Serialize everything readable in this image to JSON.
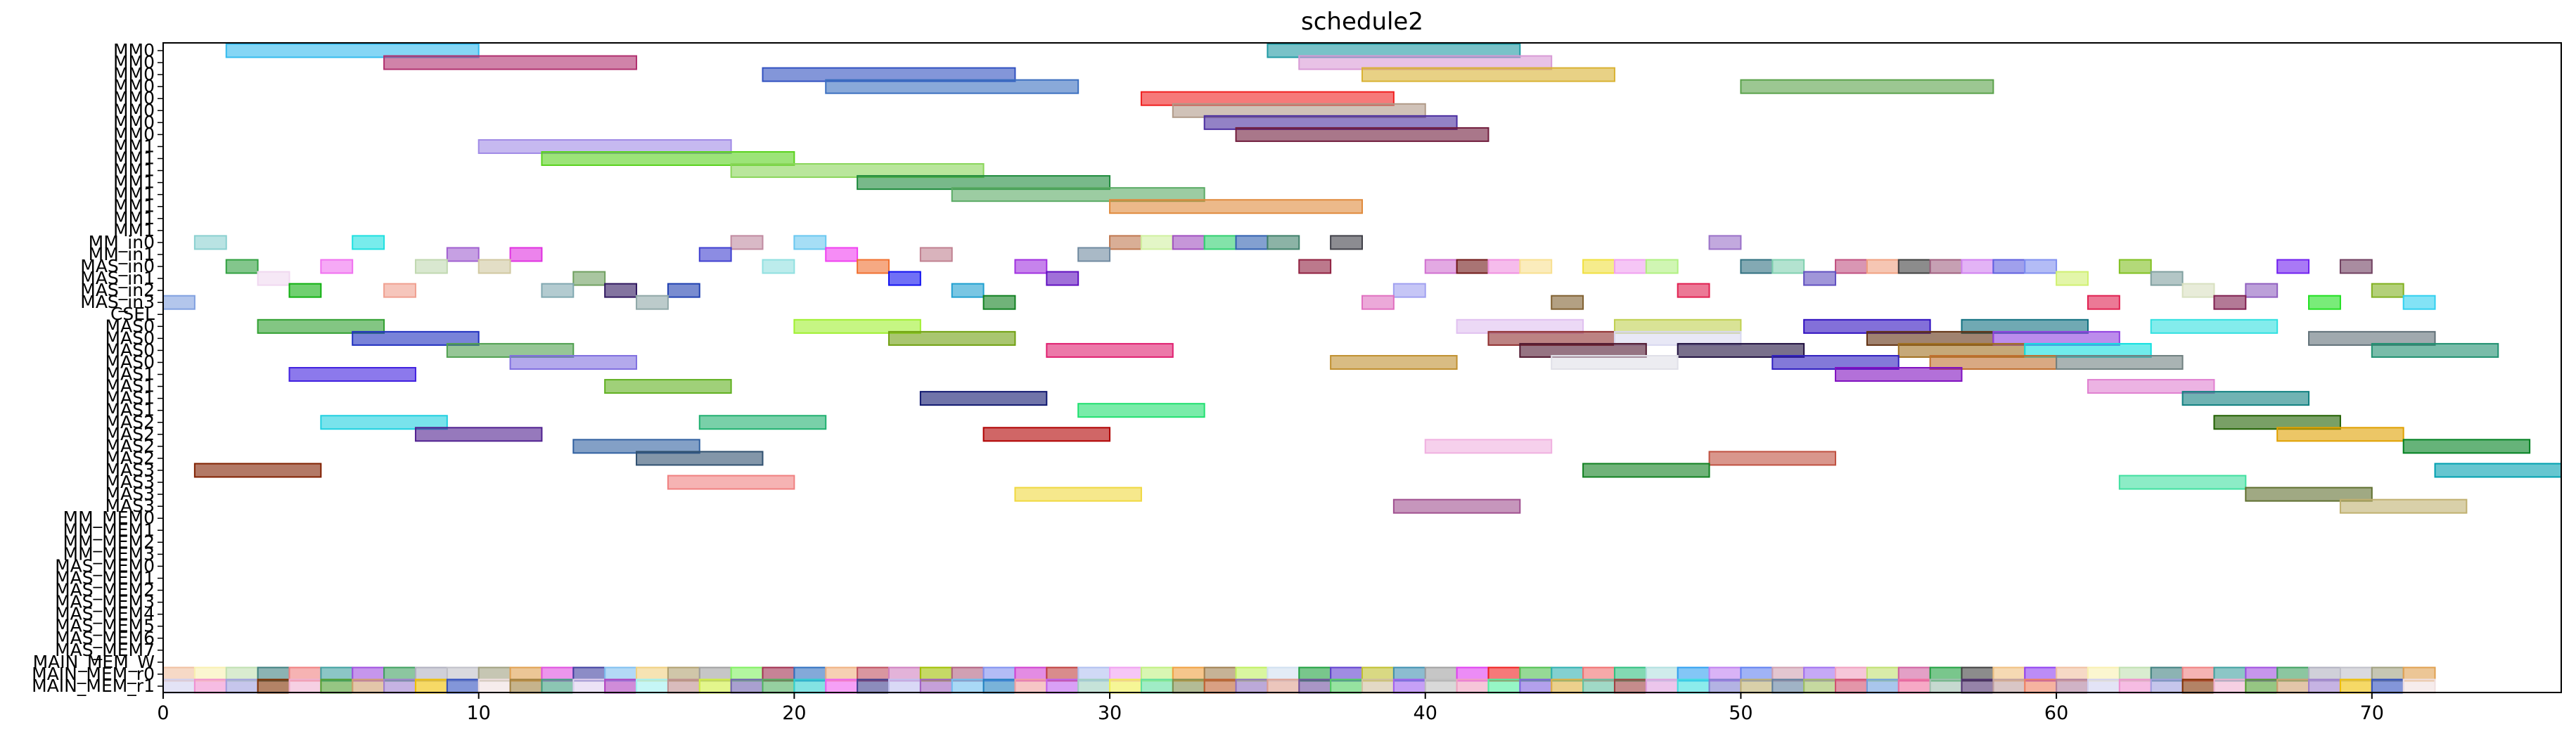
{
  "chart_data": {
    "type": "gantt",
    "title": "schedule2",
    "xlim": [
      0,
      76
    ],
    "x_ticks": [
      0,
      10,
      20,
      30,
      40,
      50,
      60,
      70
    ],
    "rows": [
      "MM0",
      "MM0",
      "MM0",
      "MM0",
      "MM0",
      "MM0",
      "MM0",
      "MM0",
      "MM1",
      "MM1",
      "MM1",
      "MM1",
      "MM1",
      "MM1",
      "MM1",
      "MM1",
      "MM_in0",
      "MM_in1",
      "MAS_in0",
      "MAS_in1",
      "MAS_in2",
      "MAS_in3",
      "CSEL",
      "MAS0",
      "MAS0",
      "MAS0",
      "MAS0",
      "MAS1",
      "MAS1",
      "MAS1",
      "MAS1",
      "MAS2",
      "MAS2",
      "MAS2",
      "MAS2",
      "MAS3",
      "MAS3",
      "MAS3",
      "MAS3",
      "MM_MEM0",
      "MM_MEM1",
      "MM_MEM2",
      "MM_MEM3",
      "MAS_MEM0",
      "MAS_MEM1",
      "MAS_MEM2",
      "MAS_MEM3",
      "MAS_MEM4",
      "MAS_MEM5",
      "MAS_MEM6",
      "MAS_MEM7",
      "MAIN_MEM_W",
      "MAIN_MEM_r0",
      "MAIN_MEM_r1"
    ],
    "tasks": [
      {
        "row": 0,
        "start": 2,
        "end": 10,
        "color": "#33bbee"
      },
      {
        "row": 0,
        "start": 35,
        "end": 43,
        "color": "#1f9aa3"
      },
      {
        "row": 1,
        "start": 7,
        "end": 15,
        "color": "#b0306f"
      },
      {
        "row": 1,
        "start": 36,
        "end": 44,
        "color": "#d89ad6"
      },
      {
        "row": 2,
        "start": 19,
        "end": 27,
        "color": "#3050c0"
      },
      {
        "row": 2,
        "start": 38,
        "end": 46,
        "color": "#d9b233"
      },
      {
        "row": 3,
        "start": 21,
        "end": 29,
        "color": "#3b6fc0"
      },
      {
        "row": 3,
        "start": 50,
        "end": 58,
        "color": "#5aa24a"
      },
      {
        "row": 4,
        "start": 31,
        "end": 39,
        "color": "#f02020"
      },
      {
        "row": 5,
        "start": 32,
        "end": 40,
        "color": "#b09a88"
      },
      {
        "row": 6,
        "start": 33,
        "end": 41,
        "color": "#4b2ea0"
      },
      {
        "row": 7,
        "start": 34,
        "end": 42,
        "color": "#701c3c"
      },
      {
        "row": 8,
        "start": 10,
        "end": 18,
        "color": "#a08ae6"
      },
      {
        "row": 9,
        "start": 12,
        "end": 20,
        "color": "#5ad21e"
      },
      {
        "row": 10,
        "start": 18,
        "end": 26,
        "color": "#8ad65a"
      },
      {
        "row": 11,
        "start": 22,
        "end": 30,
        "color": "#1e8a3c"
      },
      {
        "row": 12,
        "start": 25,
        "end": 33,
        "color": "#5aaa64"
      },
      {
        "row": 13,
        "start": 30,
        "end": 38,
        "color": "#e08a3c"
      },
      {
        "row": 16,
        "start": 1,
        "end": 2,
        "color": "#8ad0d0"
      },
      {
        "row": 16,
        "start": 6,
        "end": 7,
        "color": "#1ee0e0"
      },
      {
        "row": 16,
        "start": 18,
        "end": 19,
        "color": "#c08aa0"
      },
      {
        "row": 16,
        "start": 20,
        "end": 21,
        "color": "#6ac8f0"
      },
      {
        "row": 16,
        "start": 30,
        "end": 31,
        "color": "#c07850"
      },
      {
        "row": 16,
        "start": 31,
        "end": 32,
        "color": "#d0f0a0"
      },
      {
        "row": 16,
        "start": 32,
        "end": 33,
        "color": "#a050c0"
      },
      {
        "row": 16,
        "start": 33,
        "end": 34,
        "color": "#30d070"
      },
      {
        "row": 16,
        "start": 34,
        "end": 35,
        "color": "#3060b0"
      },
      {
        "row": 16,
        "start": 35,
        "end": 36,
        "color": "#40806a"
      },
      {
        "row": 16,
        "start": 37,
        "end": 38,
        "color": "#404048"
      },
      {
        "row": 16,
        "start": 49,
        "end": 50,
        "color": "#9a70c8"
      },
      {
        "row": 17,
        "start": 9,
        "end": 10,
        "color": "#a060d0"
      },
      {
        "row": 17,
        "start": 11,
        "end": 12,
        "color": "#e030e0"
      },
      {
        "row": 17,
        "start": 17,
        "end": 18,
        "color": "#4040d0"
      },
      {
        "row": 17,
        "start": 21,
        "end": 22,
        "color": "#f040f0"
      },
      {
        "row": 17,
        "start": 24,
        "end": 25,
        "color": "#c08090"
      },
      {
        "row": 17,
        "start": 29,
        "end": 30,
        "color": "#708aa0"
      },
      {
        "row": 18,
        "start": 2,
        "end": 3,
        "color": "#30a040"
      },
      {
        "row": 18,
        "start": 5,
        "end": 6,
        "color": "#f070f0"
      },
      {
        "row": 18,
        "start": 8,
        "end": 9,
        "color": "#c0d8b0"
      },
      {
        "row": 18,
        "start": 10,
        "end": 11,
        "color": "#d0c8a0"
      },
      {
        "row": 18,
        "start": 19,
        "end": 20,
        "color": "#90e0e0"
      },
      {
        "row": 18,
        "start": 22,
        "end": 23,
        "color": "#f07030"
      },
      {
        "row": 18,
        "start": 27,
        "end": 28,
        "color": "#a030e0"
      },
      {
        "row": 18,
        "start": 36,
        "end": 37,
        "color": "#902040"
      },
      {
        "row": 18,
        "start": 40,
        "end": 41,
        "color": "#d070d0"
      },
      {
        "row": 18,
        "start": 41,
        "end": 42,
        "color": "#701818"
      },
      {
        "row": 18,
        "start": 42,
        "end": 43,
        "color": "#f090e0"
      },
      {
        "row": 18,
        "start": 43,
        "end": 44,
        "color": "#f8e090"
      },
      {
        "row": 18,
        "start": 45,
        "end": 46,
        "color": "#f0e040"
      },
      {
        "row": 18,
        "start": 46,
        "end": 47,
        "color": "#f0a0f0"
      },
      {
        "row": 18,
        "start": 47,
        "end": 48,
        "color": "#b0f080"
      },
      {
        "row": 18,
        "start": 50,
        "end": 51,
        "color": "#307080"
      },
      {
        "row": 18,
        "start": 51,
        "end": 52,
        "color": "#80d0b0"
      },
      {
        "row": 18,
        "start": 53,
        "end": 54,
        "color": "#c05080"
      },
      {
        "row": 18,
        "start": 54,
        "end": 55,
        "color": "#f0a080"
      },
      {
        "row": 18,
        "start": 55,
        "end": 56,
        "color": "#404040"
      },
      {
        "row": 18,
        "start": 56,
        "end": 57,
        "color": "#a06080"
      },
      {
        "row": 18,
        "start": 57,
        "end": 58,
        "color": "#d080f0"
      },
      {
        "row": 18,
        "start": 58,
        "end": 59,
        "color": "#6060e0"
      },
      {
        "row": 18,
        "start": 59,
        "end": 60,
        "color": "#8090f0"
      },
      {
        "row": 18,
        "start": 62,
        "end": 63,
        "color": "#80c020"
      },
      {
        "row": 18,
        "start": 67,
        "end": 68,
        "color": "#7020f0"
      },
      {
        "row": 18,
        "start": 69,
        "end": 70,
        "color": "#704060"
      },
      {
        "row": 19,
        "start": 3,
        "end": 4,
        "color": "#f0d8f0"
      },
      {
        "row": 19,
        "start": 13,
        "end": 14,
        "color": "#70a060"
      },
      {
        "row": 19,
        "start": 23,
        "end": 24,
        "color": "#1010f0"
      },
      {
        "row": 19,
        "start": 28,
        "end": 29,
        "color": "#6010c0"
      },
      {
        "row": 19,
        "start": 52,
        "end": 53,
        "color": "#6050c0"
      },
      {
        "row": 19,
        "start": 60,
        "end": 61,
        "color": "#d0f070"
      },
      {
        "row": 19,
        "start": 63,
        "end": 64,
        "color": "#80a0a0"
      },
      {
        "row": 20,
        "start": 4,
        "end": 5,
        "color": "#10b010"
      },
      {
        "row": 20,
        "start": 7,
        "end": 8,
        "color": "#f0a090"
      },
      {
        "row": 20,
        "start": 12,
        "end": 13,
        "color": "#80a8b0"
      },
      {
        "row": 20,
        "start": 14,
        "end": 15,
        "color": "#301860"
      },
      {
        "row": 20,
        "start": 16,
        "end": 17,
        "color": "#2040b0"
      },
      {
        "row": 20,
        "start": 25,
        "end": 26,
        "color": "#20a0d0"
      },
      {
        "row": 20,
        "start": 39,
        "end": 40,
        "color": "#a0a0f0"
      },
      {
        "row": 20,
        "start": 48,
        "end": 49,
        "color": "#e02050"
      },
      {
        "row": 20,
        "start": 64,
        "end": 65,
        "color": "#d8e0c0"
      },
      {
        "row": 20,
        "start": 66,
        "end": 67,
        "color": "#9060c0"
      },
      {
        "row": 20,
        "start": 70,
        "end": 71,
        "color": "#80b020"
      },
      {
        "row": 21,
        "start": 0,
        "end": 1,
        "color": "#80a0e0"
      },
      {
        "row": 21,
        "start": 15,
        "end": 16,
        "color": "#90a8a8"
      },
      {
        "row": 21,
        "start": 26,
        "end": 27,
        "color": "#108020"
      },
      {
        "row": 21,
        "start": 38,
        "end": 39,
        "color": "#e070c0"
      },
      {
        "row": 21,
        "start": 44,
        "end": 45,
        "color": "#806030"
      },
      {
        "row": 21,
        "start": 61,
        "end": 62,
        "color": "#e02050"
      },
      {
        "row": 21,
        "start": 65,
        "end": 66,
        "color": "#802050"
      },
      {
        "row": 21,
        "start": 68,
        "end": 69,
        "color": "#20e020"
      },
      {
        "row": 21,
        "start": 71,
        "end": 72,
        "color": "#30d0f0"
      },
      {
        "row": 23,
        "start": 3,
        "end": 7,
        "color": "#30a030"
      },
      {
        "row": 23,
        "start": 20,
        "end": 24,
        "color": "#a0f030"
      },
      {
        "row": 23,
        "start": 41,
        "end": 45,
        "color": "#e0c0f0"
      },
      {
        "row": 23,
        "start": 46,
        "end": 50,
        "color": "#c0d050"
      },
      {
        "row": 23,
        "start": 52,
        "end": 56,
        "color": "#3010c0"
      },
      {
        "row": 23,
        "start": 57,
        "end": 61,
        "color": "#107080"
      },
      {
        "row": 23,
        "start": 63,
        "end": 67,
        "color": "#30e0e0"
      },
      {
        "row": 24,
        "start": 6,
        "end": 10,
        "color": "#2030c0"
      },
      {
        "row": 24,
        "start": 23,
        "end": 27,
        "color": "#70a010"
      },
      {
        "row": 24,
        "start": 42,
        "end": 46,
        "color": "#903030"
      },
      {
        "row": 24,
        "start": 46,
        "end": 50,
        "color": "#d8d8f0"
      },
      {
        "row": 24,
        "start": 54,
        "end": 58,
        "color": "#603010"
      },
      {
        "row": 24,
        "start": 58,
        "end": 62,
        "color": "#9040e0"
      },
      {
        "row": 24,
        "start": 68,
        "end": 72,
        "color": "#607078"
      },
      {
        "row": 25,
        "start": 9,
        "end": 13,
        "color": "#50a050"
      },
      {
        "row": 25,
        "start": 28,
        "end": 32,
        "color": "#e02070"
      },
      {
        "row": 25,
        "start": 43,
        "end": 47,
        "color": "#501830"
      },
      {
        "row": 25,
        "start": 48,
        "end": 52,
        "color": "#201040"
      },
      {
        "row": 25,
        "start": 55,
        "end": 59,
        "color": "#a07020"
      },
      {
        "row": 25,
        "start": 59,
        "end": 63,
        "color": "#10e0e0"
      },
      {
        "row": 25,
        "start": 70,
        "end": 74,
        "color": "#209070"
      },
      {
        "row": 26,
        "start": 11,
        "end": 15,
        "color": "#8070e0"
      },
      {
        "row": 26,
        "start": 37,
        "end": 41,
        "color": "#c09030"
      },
      {
        "row": 26,
        "start": 44,
        "end": 48,
        "color": "#e0e0e8"
      },
      {
        "row": 26,
        "start": 51,
        "end": 55,
        "color": "#3020c0"
      },
      {
        "row": 26,
        "start": 56,
        "end": 60,
        "color": "#c07030"
      },
      {
        "row": 26,
        "start": 60,
        "end": 64,
        "color": "#708080"
      },
      {
        "row": 27,
        "start": 4,
        "end": 8,
        "color": "#4020e0"
      },
      {
        "row": 27,
        "start": 53,
        "end": 57,
        "color": "#8010c0"
      },
      {
        "row": 28,
        "start": 14,
        "end": 18,
        "color": "#60b020"
      },
      {
        "row": 28,
        "start": 61,
        "end": 65,
        "color": "#e080d0"
      },
      {
        "row": 29,
        "start": 24,
        "end": 28,
        "color": "#101870"
      },
      {
        "row": 29,
        "start": 64,
        "end": 68,
        "color": "#108080"
      },
      {
        "row": 30,
        "start": 29,
        "end": 33,
        "color": "#20e070"
      },
      {
        "row": 31,
        "start": 5,
        "end": 9,
        "color": "#20d0e0"
      },
      {
        "row": 31,
        "start": 17,
        "end": 21,
        "color": "#20b070"
      },
      {
        "row": 31,
        "start": 65,
        "end": 69,
        "color": "#206000"
      },
      {
        "row": 32,
        "start": 8,
        "end": 12,
        "color": "#502090"
      },
      {
        "row": 32,
        "start": 26,
        "end": 30,
        "color": "#b00000"
      },
      {
        "row": 32,
        "start": 67,
        "end": 71,
        "color": "#e0a000"
      },
      {
        "row": 33,
        "start": 13,
        "end": 17,
        "color": "#3060a0"
      },
      {
        "row": 33,
        "start": 40,
        "end": 44,
        "color": "#f0b0e0"
      },
      {
        "row": 33,
        "start": 71,
        "end": 75,
        "color": "#008020"
      },
      {
        "row": 34,
        "start": 15,
        "end": 19,
        "color": "#305070"
      },
      {
        "row": 34,
        "start": 49,
        "end": 53,
        "color": "#c05040"
      },
      {
        "row": 35,
        "start": 1,
        "end": 5,
        "color": "#802000"
      },
      {
        "row": 35,
        "start": 45,
        "end": 49,
        "color": "#108020"
      },
      {
        "row": 35,
        "start": 72,
        "end": 76,
        "color": "#00a0b0"
      },
      {
        "row": 36,
        "start": 16,
        "end": 20,
        "color": "#f08080"
      },
      {
        "row": 36,
        "start": 62,
        "end": 66,
        "color": "#40e0a0"
      },
      {
        "row": 37,
        "start": 27,
        "end": 31,
        "color": "#f0d840"
      },
      {
        "row": 37,
        "start": 66,
        "end": 70,
        "color": "#607030"
      },
      {
        "row": 38,
        "start": 39,
        "end": 43,
        "color": "#a05090"
      },
      {
        "row": 38,
        "start": 69,
        "end": 73,
        "color": "#c0b070"
      }
    ],
    "memory_rows": {
      "rows": [
        51,
        52,
        53
      ],
      "start": 0,
      "end": 72,
      "palettes": [
        [
          "#f0c0a0",
          "#f8f0b0",
          "#c0e0b0",
          "#408080",
          "#f08080",
          "#40a0a0",
          "#a050e0",
          "#40a060",
          "#b0b0c0",
          "#c0c0c8",
          "#a0a080",
          "#e0a050",
          "#e050e0",
          "#4040a0",
          "#80c0f0",
          "#f0d080",
          "#b0a070",
          "#a0a0a0",
          "#80f060",
          "#a03050",
          "#3070c0",
          "#f0b080",
          "#c05060",
          "#d080c0",
          "#a0c000",
          "#b06080",
          "#8090f0",
          "#d040d0",
          "#c04040",
          "#b0c0f0",
          "#f0a0f0",
          "#c0f080",
          "#f0a040",
          "#a08050",
          "#c0f060",
          "#d0e0f0",
          "#20a040",
          "#6040d0",
          "#c0c030",
          "#4090b0",
          "#a0a0a0",
          "#e040f0",
          "#f02020",
          "#50c050",
          "#30b0b0",
          "#f07070",
          "#30c080",
          "#b0e0e0",
          "#30a0f0",
          "#c080f0",
          "#6080f0",
          "#d0a0b0",
          "#a070f0",
          "#f0a0c0",
          "#c0e070",
          "#d060a0",
          "#20a040",
          "#404040",
          "#f0c080",
          "#9040f0"
        ],
        [
          "#d0d0f0",
          "#f090d0",
          "#a0a0e0",
          "#803000",
          "#f0b0d0",
          "#50a030",
          "#d0a070",
          "#a080d0",
          "#f0c000",
          "#3050c0",
          "#f0e0e0",
          "#a08040",
          "#40a080",
          "#e0d0f0",
          "#b040c0",
          "#a0f0f0",
          "#c09090",
          "#d0f040",
          "#7060b0",
          "#50b060",
          "#30d0d0",
          "#f060f0",
          "#404090",
          "#c0c0f0",
          "#a060c0",
          "#70c0f0",
          "#2080c0",
          "#f0a0a0",
          "#c060f0",
          "#a0d0c0",
          "#f0f050",
          "#60e0a0",
          "#809050",
          "#c06030",
          "#9070c0",
          "#e0a090",
          "#7050a0",
          "#50d060",
          "#d0c0a0",
          "#a060f0",
          "#c0c0c0",
          "#f0a0c0",
          "#50f0a0",
          "#8060e0",
          "#e0b040",
          "#60c0a0",
          "#a04040",
          "#e0a0e0",
          "#40e0e0",
          "#8080d0",
          "#c0b070",
          "#6080a0",
          "#a0c060",
          "#d05070",
          "#70a0e0",
          "#f070a0",
          "#a0c0b0",
          "#503070",
          "#c0a0a0",
          "#f08060",
          "#b080a0"
        ]
      ]
    },
    "grid": false,
    "legend": "none"
  }
}
